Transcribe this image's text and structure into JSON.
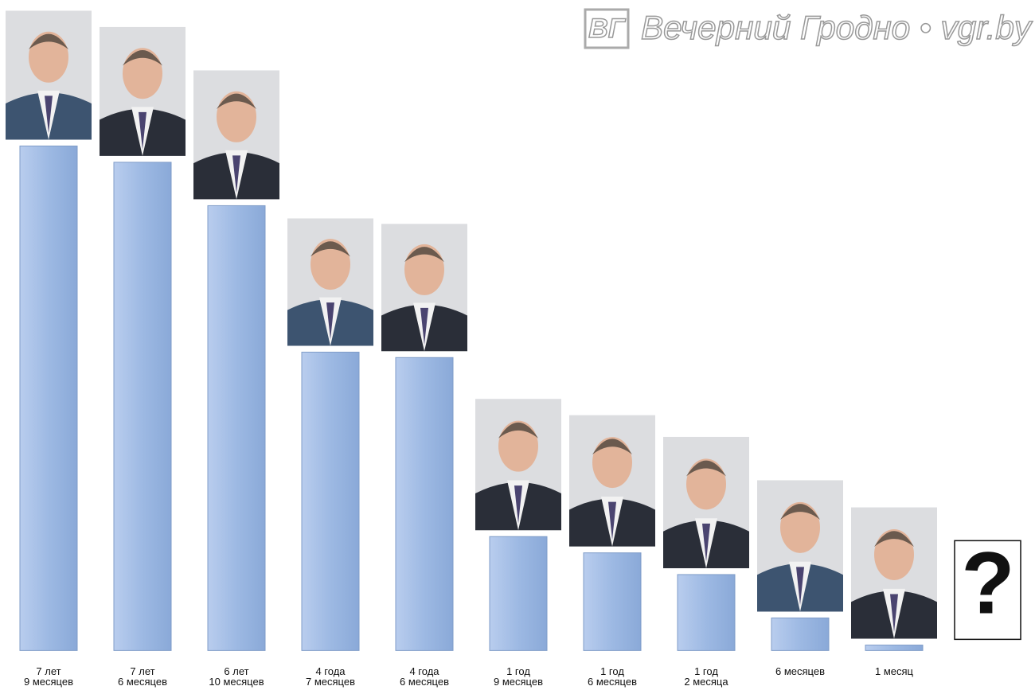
{
  "chart_data": {
    "type": "bar",
    "logo": "ВГ",
    "source": "Вечерний Гродно • vgr.by",
    "annotation": "?",
    "values": [
      93,
      90,
      82,
      55,
      54,
      21,
      18,
      14,
      6,
      1,
      0
    ],
    "value_labels": [
      "7 лет\n9 месяцев",
      "7 лет\n6 месяцев",
      "6 лет\n10 месяцев",
      "4 года\n7 месяцев",
      "4 года\n6 месяцев",
      "1 год\n9 месяцев",
      "1 год\n6 месяцев",
      "1 год\n2 месяца",
      "6 месяцев",
      "1 месяц",
      null
    ],
    "color": "#9db9e3",
    "ylim": [
      -2,
      96
    ]
  }
}
